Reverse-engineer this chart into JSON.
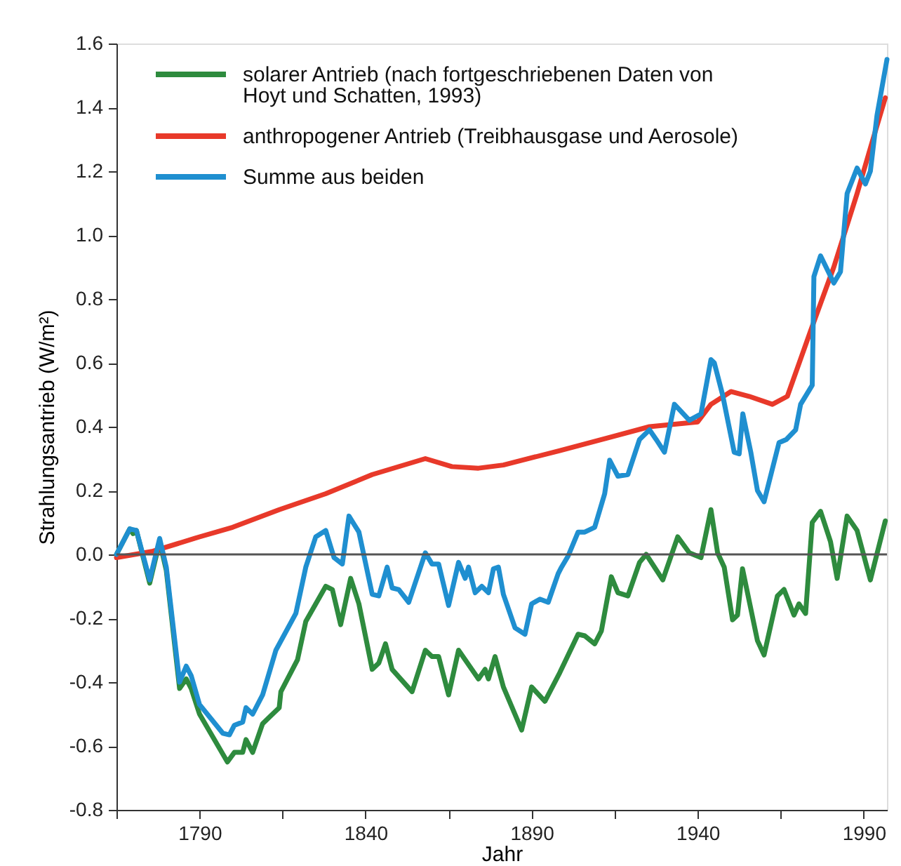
{
  "chart_data": {
    "type": "line",
    "xlabel": "Jahr",
    "ylabel": "Strahlungsantrieb (W/m²)",
    "xlim": [
      1765,
      1997
    ],
    "xticks": [
      {
        "value": 1765,
        "label": null
      },
      1790,
      {
        "value": 1815,
        "label": null
      },
      1840,
      {
        "value": 1865,
        "label": null
      },
      1890,
      {
        "value": 1915,
        "label": null
      },
      1940,
      {
        "value": 1965,
        "label": null
      },
      1990
    ],
    "ylim": [
      -0.8,
      1.6
    ],
    "yticks": [
      {
        "value": -0.8,
        "label": "-0.8"
      },
      {
        "value": -0.6,
        "label": "-0.6"
      },
      {
        "value": -0.4,
        "label": "-0.4"
      },
      {
        "value": -0.2,
        "label": "-0.2"
      },
      {
        "value": 0,
        "label": "0.0"
      },
      {
        "value": 0.2,
        "label": "0.2"
      },
      {
        "value": 0.4,
        "label": "0.4"
      },
      {
        "value": 0.6,
        "label": "0.6"
      },
      {
        "value": 0.8,
        "label": "0.8"
      },
      {
        "value": 1.0,
        "label": "1.0"
      },
      {
        "value": 1.2,
        "label": "1.2"
      },
      {
        "value": 1.4,
        "label": "1.4"
      },
      {
        "value": 1.6,
        "label": "1.6"
      }
    ],
    "grid": false,
    "legend": "top left",
    "marker": "none",
    "line_style": "solid",
    "ref_lines": [
      {
        "axis": "y",
        "value": 0,
        "label": null,
        "color": "#555555"
      }
    ],
    "series": [
      {
        "name": "solarer Antrieb (nach fortgeschriebenen Daten von Hoyt und Schatten, 1993)",
        "color": "#2e8b3e",
        "x": [
          1765,
          1769,
          1770,
          1771,
          1775,
          1778,
          1780,
          1784,
          1786,
          1787.5,
          1790,
          1798.4,
          1800.5,
          1803,
          1804,
          1806,
          1809,
          1814,
          1814.5,
          1819.5,
          1822,
          1828,
          1830,
          1832.5,
          1835.5,
          1838,
          1842,
          1844,
          1846,
          1848,
          1854,
          1858,
          1860,
          1862,
          1865,
          1868,
          1874,
          1876,
          1877,
          1879,
          1881.5,
          1887,
          1890,
          1894,
          1898.5,
          1904,
          1906,
          1909,
          1911,
          1914,
          1916,
          1919,
          1922.5,
          1924.5,
          1929.5,
          1934,
          1937.5,
          1941,
          1944,
          1946,
          1948,
          1950.5,
          1952,
          1953.5,
          1958,
          1960,
          1964,
          1966,
          1969,
          1970.5,
          1972.5,
          1974.5,
          1977,
          1980,
          1982,
          1985,
          1988,
          1992,
          1996.5
        ],
        "values": [
          0.0,
          0.08,
          0.065,
          0.075,
          -0.09,
          0.04,
          -0.05,
          -0.42,
          -0.39,
          -0.42,
          -0.5,
          -0.65,
          -0.62,
          -0.62,
          -0.58,
          -0.62,
          -0.53,
          -0.48,
          -0.43,
          -0.33,
          -0.21,
          -0.1,
          -0.11,
          -0.22,
          -0.075,
          -0.155,
          -0.36,
          -0.34,
          -0.28,
          -0.36,
          -0.43,
          -0.3,
          -0.32,
          -0.32,
          -0.44,
          -0.3,
          -0.39,
          -0.36,
          -0.39,
          -0.32,
          -0.415,
          -0.55,
          -0.415,
          -0.46,
          -0.37,
          -0.25,
          -0.255,
          -0.28,
          -0.24,
          -0.07,
          -0.12,
          -0.13,
          -0.025,
          0.0,
          -0.08,
          0.055,
          0.005,
          -0.01,
          0.14,
          0.005,
          -0.04,
          -0.205,
          -0.19,
          -0.045,
          -0.27,
          -0.315,
          -0.13,
          -0.11,
          -0.19,
          -0.155,
          -0.185,
          0.1,
          0.135,
          0.04,
          -0.075,
          0.12,
          0.075,
          -0.08,
          0.105
        ]
      },
      {
        "name": "anthropogener Antrieb (Treibhausgase und Aerosole)",
        "color": "#e8392a",
        "x": [
          1765,
          1776,
          1790,
          1800,
          1814,
          1828,
          1842,
          1858,
          1866,
          1874,
          1881.5,
          1898.5,
          1913,
          1925.5,
          1940,
          1944,
          1950,
          1955.5,
          1962.5,
          1967,
          1974,
          1981,
          1988,
          1992.5,
          1996.5
        ],
        "values": [
          -0.01,
          0.01,
          0.055,
          0.085,
          0.14,
          0.19,
          0.25,
          0.3,
          0.275,
          0.27,
          0.28,
          0.325,
          0.365,
          0.4,
          0.415,
          0.47,
          0.51,
          0.495,
          0.47,
          0.495,
          0.7,
          0.9,
          1.13,
          1.29,
          1.43
        ]
      },
      {
        "name": "Summe aus beiden",
        "color": "#1f8fd0",
        "x": [
          1765,
          1769,
          1771,
          1775,
          1778,
          1780,
          1784,
          1786,
          1787.5,
          1790,
          1797,
          1799,
          1800.5,
          1803,
          1804,
          1806,
          1809,
          1813,
          1819,
          1822,
          1825,
          1828,
          1830.5,
          1833,
          1835,
          1838,
          1842,
          1844,
          1846.5,
          1848,
          1850,
          1853,
          1858,
          1860,
          1862,
          1865,
          1868,
          1870,
          1871,
          1873,
          1875,
          1877,
          1878.5,
          1880,
          1881.5,
          1885,
          1888,
          1890,
          1892.5,
          1895,
          1898,
          1899,
          1901,
          1904,
          1906,
          1909,
          1912,
          1913.5,
          1916,
          1919,
          1922.5,
          1925.5,
          1927.5,
          1930,
          1933,
          1937.5,
          1941,
          1944,
          1945,
          1947.5,
          1951,
          1952.5,
          1953.6,
          1956,
          1958,
          1960,
          1964.5,
          1966.7,
          1969.5,
          1971,
          1974.5,
          1975,
          1977,
          1981,
          1983,
          1985,
          1988,
          1990.5,
          1992,
          1994,
          1997
        ],
        "values": [
          0.0,
          0.08,
          0.075,
          -0.08,
          0.05,
          -0.04,
          -0.4,
          -0.35,
          -0.38,
          -0.47,
          -0.56,
          -0.565,
          -0.535,
          -0.525,
          -0.48,
          -0.5,
          -0.44,
          -0.3,
          -0.185,
          -0.04,
          0.055,
          0.075,
          -0.01,
          -0.03,
          0.12,
          0.07,
          -0.125,
          -0.13,
          -0.04,
          -0.105,
          -0.11,
          -0.15,
          0.005,
          -0.03,
          -0.03,
          -0.16,
          -0.025,
          -0.075,
          -0.04,
          -0.12,
          -0.1,
          -0.12,
          -0.045,
          -0.04,
          -0.125,
          -0.23,
          -0.25,
          -0.155,
          -0.14,
          -0.15,
          -0.06,
          -0.04,
          -0.005,
          0.07,
          0.07,
          0.085,
          0.19,
          0.295,
          0.245,
          0.25,
          0.36,
          0.39,
          0.36,
          0.32,
          0.47,
          0.42,
          0.44,
          0.61,
          0.6,
          0.5,
          0.32,
          0.315,
          0.44,
          0.32,
          0.2,
          0.165,
          0.35,
          0.36,
          0.39,
          0.47,
          0.53,
          0.87,
          0.935,
          0.85,
          0.885,
          1.13,
          1.21,
          1.16,
          1.2,
          1.375,
          1.55
        ]
      }
    ]
  }
}
